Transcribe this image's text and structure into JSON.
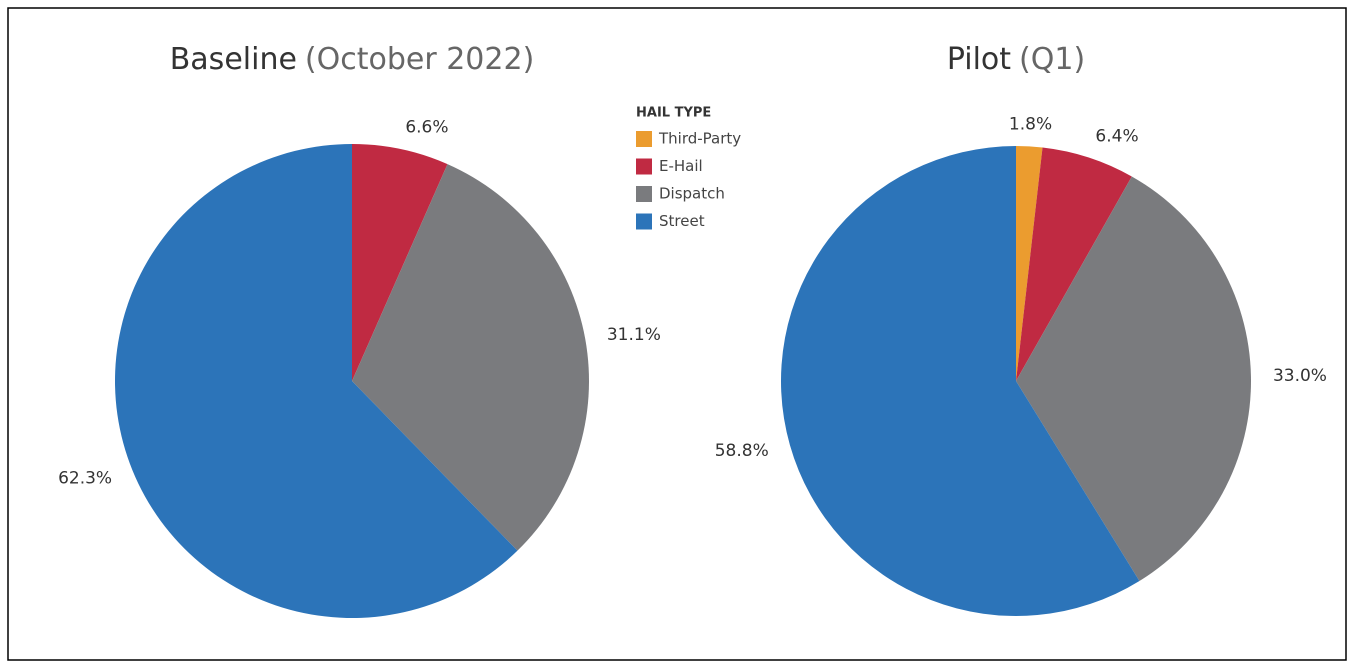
{
  "chart_data": [
    {
      "type": "pie",
      "title": "Baseline",
      "subtitle": "(October 2022)",
      "categories": [
        "E-Hail",
        "Dispatch",
        "Street"
      ],
      "values": [
        6.6,
        31.1,
        62.3
      ],
      "value_labels": [
        "6.6%",
        "31.1%",
        "62.3%"
      ],
      "colors": [
        "#c02a42",
        "#7a7b7e",
        "#2c74b9"
      ]
    },
    {
      "type": "pie",
      "title": "Pilot",
      "subtitle": "(Q1)",
      "categories": [
        "Third-Party",
        "E-Hail",
        "Dispatch",
        "Street"
      ],
      "values": [
        1.8,
        6.4,
        33.0,
        58.8
      ],
      "value_labels": [
        "1.8%",
        "6.4%",
        "33.0%",
        "58.8%"
      ],
      "colors": [
        "#eb9c2f",
        "#c02a42",
        "#7a7b7e",
        "#2c74b9"
      ]
    }
  ],
  "legend": {
    "title": "HAIL TYPE",
    "items": [
      {
        "name": "Third-Party",
        "color": "#eb9c2f"
      },
      {
        "name": "E-Hail",
        "color": "#c02a42"
      },
      {
        "name": "Dispatch",
        "color": "#7a7b7e"
      },
      {
        "name": "Street",
        "color": "#2c74b9"
      }
    ]
  }
}
